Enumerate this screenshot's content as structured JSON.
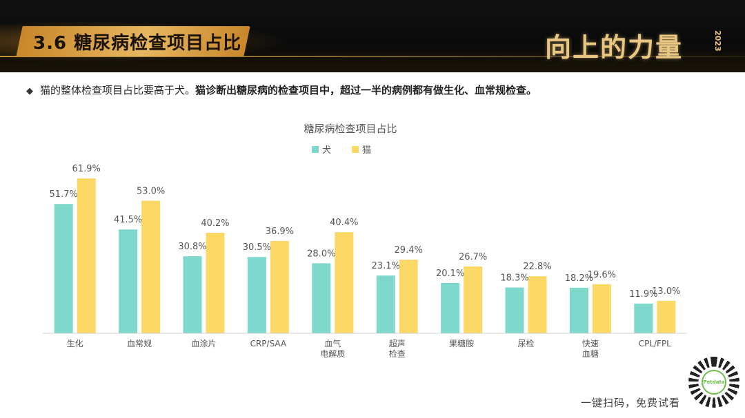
{
  "header": {
    "title": "3.6 糖尿病检查项目占比",
    "logo_text": "向上的力量",
    "logo_year": "2023"
  },
  "bullet": {
    "normal": "猫的整体检查项目占比要高于犬。",
    "bold": "猫诊断出糖尿病的检查项目中，超过一半的病例都有做生化、血常规检查。"
  },
  "footer": {
    "scan_text": "一键扫码，免费试看",
    "qr_brand": "Petdata"
  },
  "chart_data": {
    "type": "bar",
    "title": "糖尿病检查项目占比",
    "categories": [
      [
        "生化"
      ],
      [
        "血常规"
      ],
      [
        "血涂片"
      ],
      [
        "CRP/SAA"
      ],
      [
        "血气",
        "电解质"
      ],
      [
        "超声",
        "检查"
      ],
      [
        "果糖胺"
      ],
      [
        "尿检"
      ],
      [
        "快速",
        "血糖"
      ],
      [
        "CPL/FPL"
      ]
    ],
    "series": [
      {
        "name": "犬",
        "color": "#7fd8cc",
        "values": [
          51.7,
          41.5,
          30.8,
          30.5,
          28.0,
          23.1,
          20.1,
          18.3,
          18.2,
          11.9
        ]
      },
      {
        "name": "猫",
        "color": "#fcd867",
        "values": [
          61.9,
          53.0,
          40.2,
          36.9,
          40.4,
          29.4,
          26.7,
          22.8,
          19.6,
          13.0
        ]
      }
    ],
    "value_suffix": "%",
    "ylim": [
      0,
      70
    ],
    "legend_position": "top-center",
    "grid": false
  }
}
